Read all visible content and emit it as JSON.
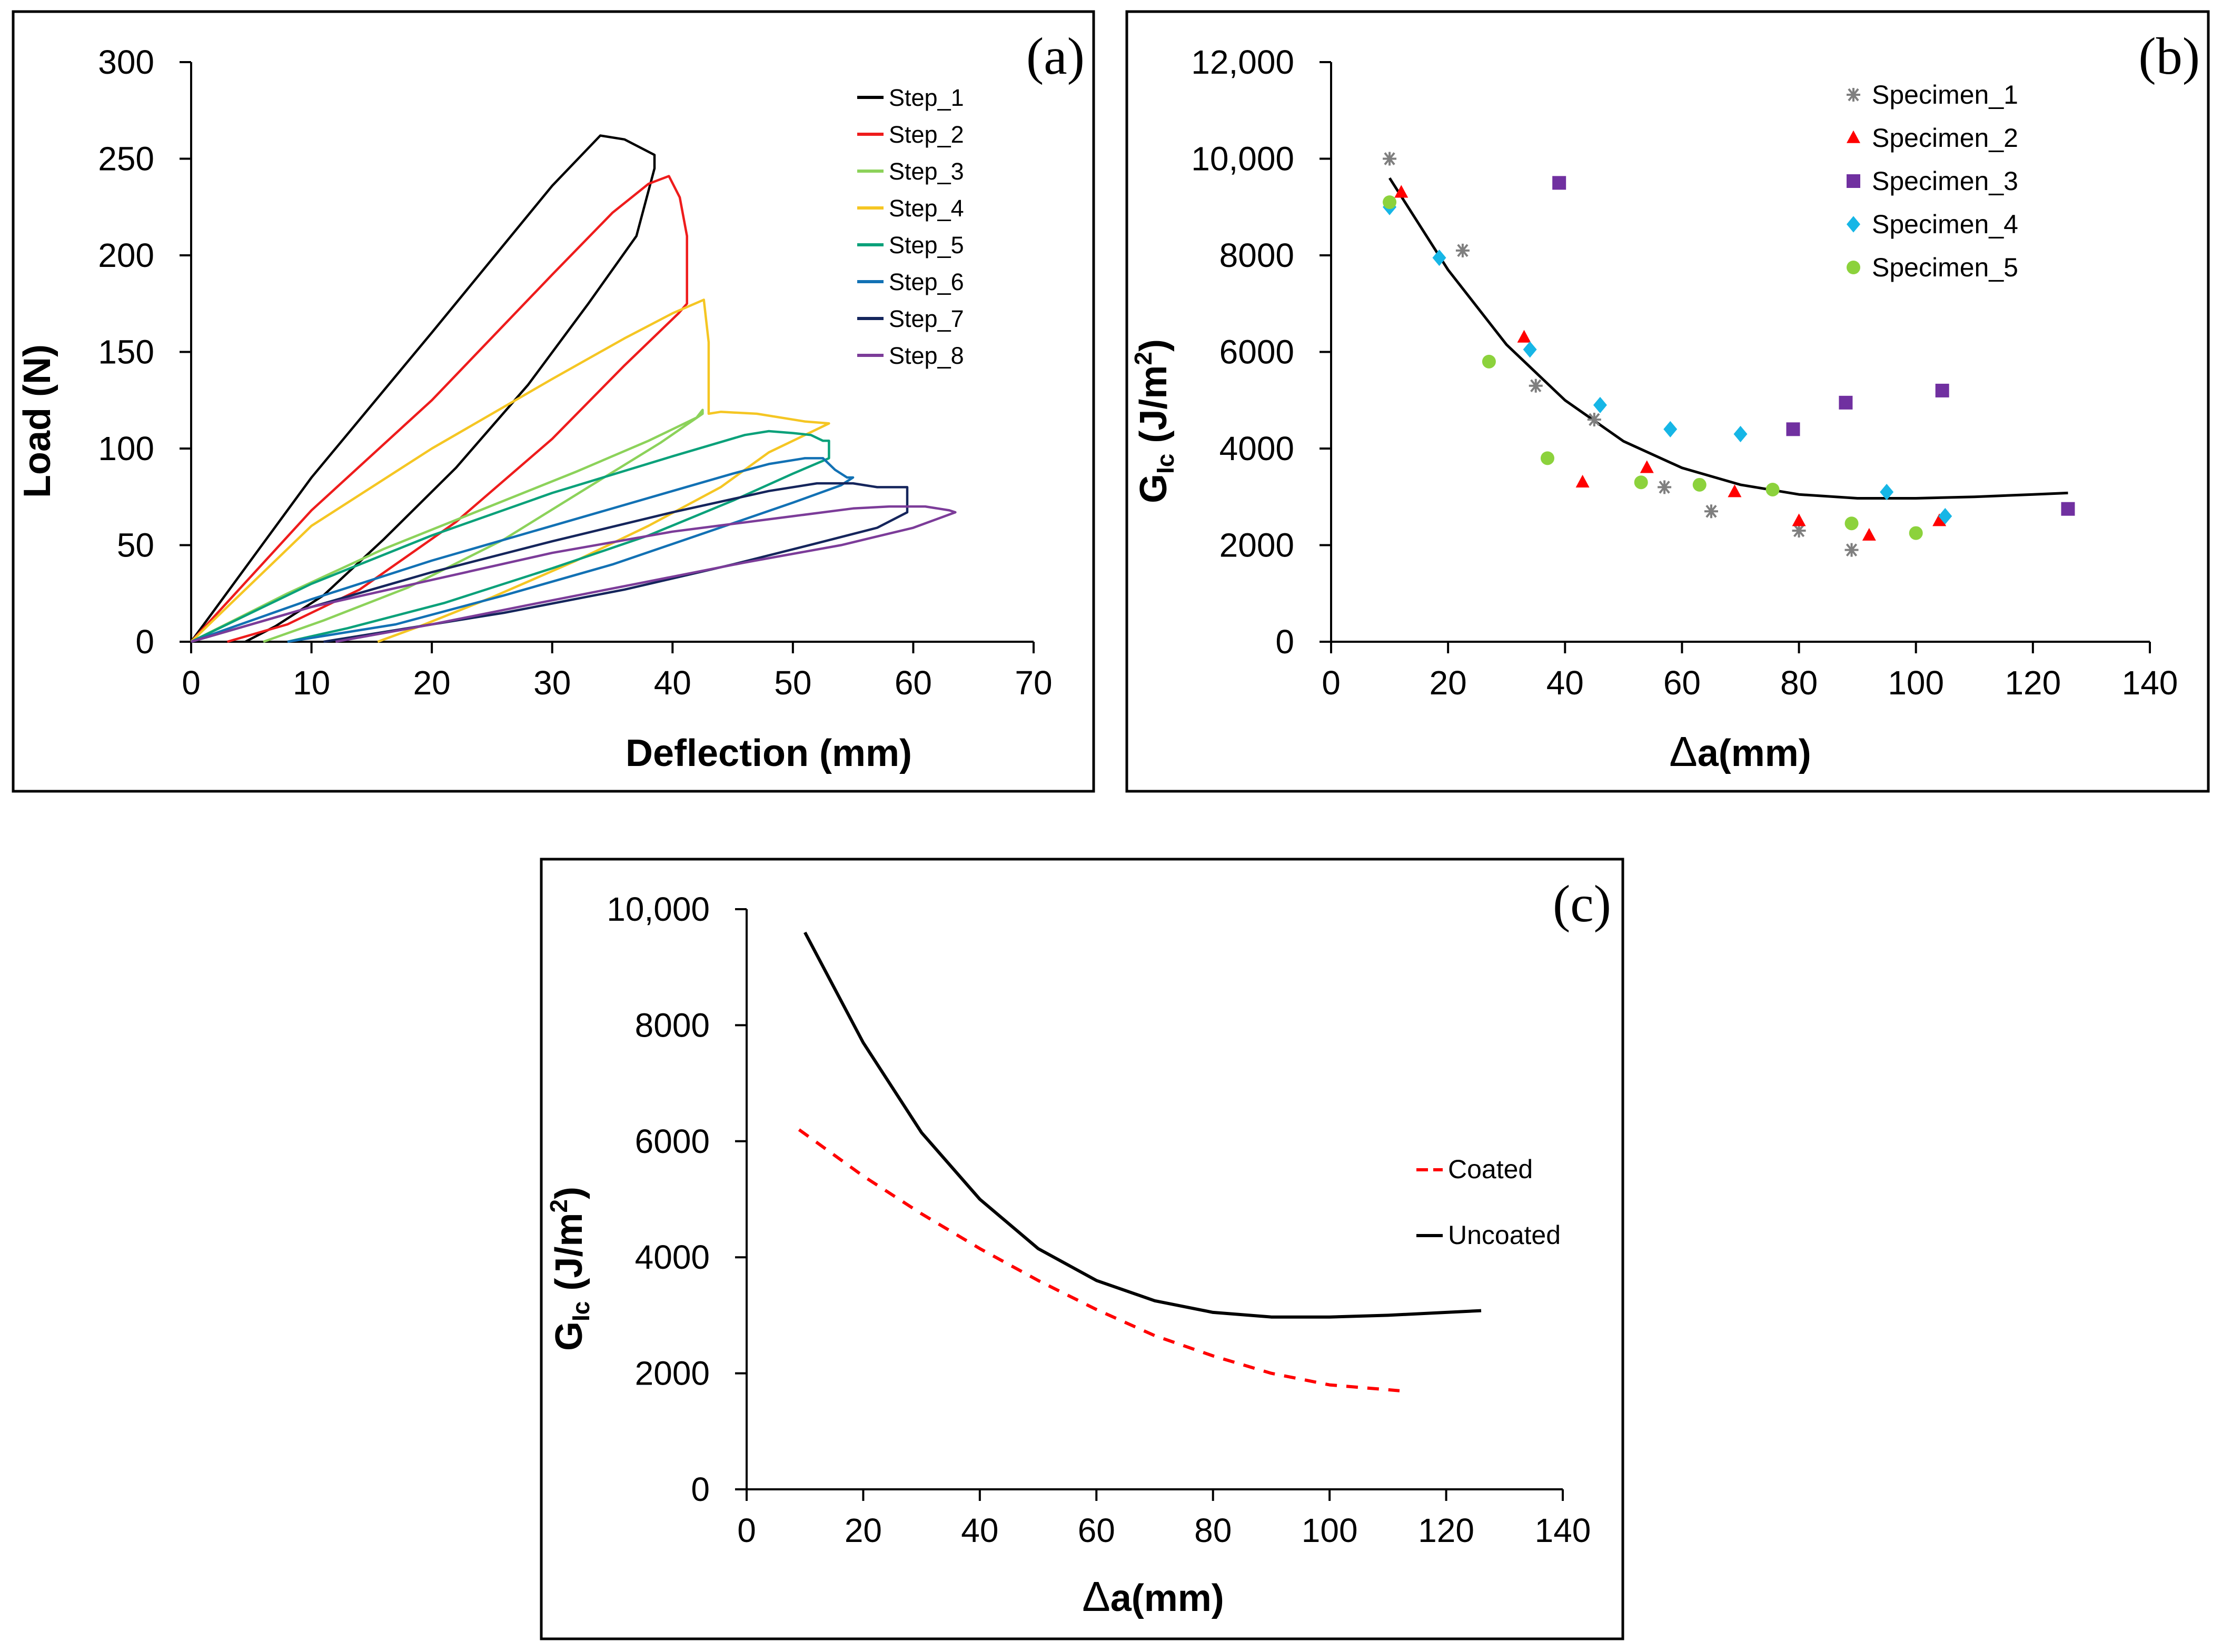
{
  "chart_data": [
    {
      "panel": "(a)",
      "type": "line",
      "title": "",
      "xlabel": "Deflection (mm)",
      "ylabel": "Load (N)",
      "xlim": [
        0,
        70
      ],
      "ylim": [
        0,
        300
      ],
      "xticks": [
        0,
        10,
        20,
        30,
        40,
        50,
        60,
        70
      ],
      "yticks": [
        0,
        50,
        100,
        150,
        200,
        250,
        300
      ],
      "xtick_labels": [
        "0",
        "10",
        "20",
        "30",
        "40",
        "50",
        "60",
        "70"
      ],
      "ytick_labels": [
        "0",
        "50",
        "100",
        "150",
        "200",
        "250",
        "300"
      ],
      "legend_position": "top-right",
      "series": [
        {
          "name": "Step_1",
          "color": "#000000",
          "points": [
            [
              0,
              0
            ],
            [
              10,
              85
            ],
            [
              20,
              160
            ],
            [
              30,
              236
            ],
            [
              34,
              262
            ],
            [
              36,
              260
            ],
            [
              38.5,
              252
            ],
            [
              38.5,
              245
            ],
            [
              37,
              210
            ],
            [
              33,
              175
            ],
            [
              28,
              133
            ],
            [
              22,
              90
            ],
            [
              16,
              53
            ],
            [
              11,
              24
            ],
            [
              7,
              8
            ],
            [
              4.5,
              0
            ]
          ]
        },
        {
          "name": "Step_2",
          "color": "#ee1c1c",
          "points": [
            [
              0,
              0
            ],
            [
              10,
              68
            ],
            [
              20,
              125
            ],
            [
              30,
              190
            ],
            [
              35,
              222
            ],
            [
              38,
              237
            ],
            [
              39.7,
              241
            ],
            [
              40.6,
              230
            ],
            [
              41.2,
              210
            ],
            [
              41.2,
              175
            ],
            [
              40.5,
              170
            ],
            [
              36,
              143
            ],
            [
              30,
              105
            ],
            [
              22,
              62
            ],
            [
              14,
              27
            ],
            [
              8,
              9
            ],
            [
              3,
              0
            ]
          ]
        },
        {
          "name": "Step_3",
          "color": "#8cd25a",
          "points": [
            [
              0,
              0
            ],
            [
              8,
              25
            ],
            [
              16,
              48
            ],
            [
              24,
              68
            ],
            [
              32,
              88
            ],
            [
              38,
              104
            ],
            [
              42,
              116
            ],
            [
              42.5,
              120
            ],
            [
              42.5,
              118
            ],
            [
              39,
              103
            ],
            [
              33,
              80
            ],
            [
              26,
              53
            ],
            [
              18,
              28
            ],
            [
              11,
              11
            ],
            [
              6,
              0
            ]
          ]
        },
        {
          "name": "Step_4",
          "color": "#f5c623",
          "points": [
            [
              0,
              0
            ],
            [
              10,
              60
            ],
            [
              20,
              100
            ],
            [
              30,
              136
            ],
            [
              36,
              157
            ],
            [
              40,
              170
            ],
            [
              42.6,
              177
            ],
            [
              43,
              155
            ],
            [
              43,
              118
            ],
            [
              44,
              119
            ],
            [
              47,
              118
            ],
            [
              51,
              114
            ],
            [
              53,
              113
            ],
            [
              52,
              110
            ],
            [
              48,
              98
            ],
            [
              44,
              80
            ],
            [
              38,
              60
            ],
            [
              32,
              42
            ],
            [
              25,
              23
            ],
            [
              19,
              8
            ],
            [
              15.5,
              0
            ]
          ]
        },
        {
          "name": "Step_5",
          "color": "#0aa17a",
          "points": [
            [
              0,
              0
            ],
            [
              10,
              30
            ],
            [
              20,
              55
            ],
            [
              30,
              77
            ],
            [
              40,
              96
            ],
            [
              46,
              107
            ],
            [
              48,
              109
            ],
            [
              50,
              108
            ],
            [
              51.5,
              107
            ],
            [
              52.5,
              104
            ],
            [
              53,
              104
            ],
            [
              53,
              95
            ],
            [
              50,
              87
            ],
            [
              45,
              73
            ],
            [
              38,
              55
            ],
            [
              30,
              38
            ],
            [
              21,
              20
            ],
            [
              13,
              7
            ],
            [
              8,
              0
            ]
          ]
        },
        {
          "name": "Step_6",
          "color": "#1271b4",
          "points": [
            [
              0,
              0
            ],
            [
              10,
              22
            ],
            [
              20,
              42
            ],
            [
              30,
              60
            ],
            [
              40,
              78
            ],
            [
              45,
              87
            ],
            [
              48,
              92
            ],
            [
              51,
              95
            ],
            [
              52.5,
              95
            ],
            [
              53.5,
              89
            ],
            [
              54.5,
              85
            ],
            [
              55,
              85
            ],
            [
              54,
              81
            ],
            [
              50,
              72
            ],
            [
              43,
              57
            ],
            [
              35,
              40
            ],
            [
              26,
              24
            ],
            [
              17,
              9
            ],
            [
              8,
              0
            ]
          ]
        },
        {
          "name": "Step_7",
          "color": "#15255c",
          "points": [
            [
              0,
              0
            ],
            [
              10,
              18
            ],
            [
              20,
              36
            ],
            [
              30,
              52
            ],
            [
              40,
              67
            ],
            [
              48,
              78
            ],
            [
              52,
              82
            ],
            [
              55,
              82
            ],
            [
              57,
              80
            ],
            [
              59.5,
              80
            ],
            [
              59.5,
              67
            ],
            [
              57,
              59
            ],
            [
              52,
              51
            ],
            [
              45,
              40
            ],
            [
              36,
              27
            ],
            [
              26,
              15
            ],
            [
              17,
              6
            ],
            [
              11,
              0
            ]
          ]
        },
        {
          "name": "Step_8",
          "color": "#7c3c99",
          "points": [
            [
              0,
              0
            ],
            [
              10,
              18
            ],
            [
              20,
              32
            ],
            [
              30,
              46
            ],
            [
              40,
              57
            ],
            [
              50,
              65
            ],
            [
              55,
              69
            ],
            [
              58,
              70
            ],
            [
              61,
              70
            ],
            [
              63,
              68
            ],
            [
              63.5,
              67
            ],
            [
              60,
              59
            ],
            [
              54,
              50
            ],
            [
              46,
              41
            ],
            [
              37,
              30
            ],
            [
              28,
              19
            ],
            [
              20,
              9
            ],
            [
              12,
              0
            ]
          ]
        }
      ]
    },
    {
      "panel": "(b)",
      "type": "scatter",
      "title": "",
      "xlabel": "Δa(mm)",
      "ylabel": "GIc (J/m2)",
      "xlim": [
        0,
        140
      ],
      "ylim": [
        0,
        12000
      ],
      "xticks": [
        0,
        20,
        40,
        60,
        80,
        100,
        120,
        140
      ],
      "yticks": [
        0,
        2000,
        4000,
        6000,
        8000,
        10000,
        12000
      ],
      "xtick_labels": [
        "0",
        "20",
        "40",
        "60",
        "80",
        "100",
        "120",
        "140"
      ],
      "ytick_labels": [
        "0",
        "2000",
        "4000",
        "6000",
        "8000",
        "10,000",
        "12,000"
      ],
      "legend_position": "top-right",
      "series": [
        {
          "name": "Specimen_1",
          "marker": "asterisk",
          "color": "#7f7f7f",
          "points": [
            [
              10,
              10000
            ],
            [
              22.5,
              8100
            ],
            [
              35,
              5300
            ],
            [
              45,
              4600
            ],
            [
              57,
              3200
            ],
            [
              65,
              2700
            ],
            [
              80,
              2300
            ],
            [
              89,
              1900
            ]
          ]
        },
        {
          "name": "Specimen_2",
          "marker": "triangle",
          "color": "#ff0000",
          "points": [
            [
              12,
              9300
            ],
            [
              33,
              6300
            ],
            [
              43,
              3300
            ],
            [
              54,
              3600
            ],
            [
              69,
              3100
            ],
            [
              80,
              2500
            ],
            [
              92,
              2200
            ],
            [
              104,
              2500
            ]
          ]
        },
        {
          "name": "Specimen_3",
          "marker": "square",
          "color": "#7030a0",
          "points": [
            [
              39,
              9500
            ],
            [
              79,
              4400
            ],
            [
              88,
              4950
            ],
            [
              104.5,
              5200
            ],
            [
              126,
              2750
            ]
          ]
        },
        {
          "name": "Specimen_4",
          "marker": "diamond",
          "color": "#16b6e6",
          "points": [
            [
              10,
              9000
            ],
            [
              18.5,
              7950
            ],
            [
              34,
              6050
            ],
            [
              46,
              4900
            ],
            [
              58,
              4400
            ],
            [
              70,
              4300
            ],
            [
              95,
              3100
            ],
            [
              105,
              2600
            ]
          ]
        },
        {
          "name": "Specimen_5",
          "marker": "circle",
          "color": "#8cd23c",
          "points": [
            [
              10,
              9100
            ],
            [
              27,
              5800
            ],
            [
              37,
              3800
            ],
            [
              53,
              3300
            ],
            [
              63,
              3250
            ],
            [
              75.5,
              3150
            ],
            [
              89,
              2450
            ],
            [
              100,
              2250
            ]
          ]
        }
      ],
      "trend": {
        "name": "fit",
        "color": "#000000",
        "points": [
          [
            10,
            9600
          ],
          [
            20,
            7700
          ],
          [
            30,
            6150
          ],
          [
            40,
            5000
          ],
          [
            50,
            4150
          ],
          [
            60,
            3600
          ],
          [
            70,
            3250
          ],
          [
            80,
            3050
          ],
          [
            90,
            2970
          ],
          [
            100,
            2970
          ],
          [
            110,
            3000
          ],
          [
            120,
            3050
          ],
          [
            126,
            3080
          ]
        ]
      }
    },
    {
      "panel": "(c)",
      "type": "line",
      "title": "",
      "xlabel": "Δa(mm)",
      "ylabel": "GIc (J/m2)",
      "xlim": [
        0,
        140
      ],
      "ylim": [
        0,
        10000
      ],
      "xticks": [
        0,
        20,
        40,
        60,
        80,
        100,
        120,
        140
      ],
      "yticks": [
        0,
        2000,
        4000,
        6000,
        8000,
        10000
      ],
      "xtick_labels": [
        "0",
        "20",
        "40",
        "60",
        "80",
        "100",
        "120",
        "140"
      ],
      "ytick_labels": [
        "0",
        "2000",
        "4000",
        "6000",
        "8000",
        "10,000"
      ],
      "legend_position": "right",
      "series": [
        {
          "name": "Coated",
          "style": "dashed",
          "color": "#ff0000",
          "points": [
            [
              9,
              6200
            ],
            [
              20,
              5400
            ],
            [
              30,
              4750
            ],
            [
              40,
              4150
            ],
            [
              50,
              3600
            ],
            [
              60,
              3100
            ],
            [
              70,
              2650
            ],
            [
              80,
              2300
            ],
            [
              90,
              2000
            ],
            [
              100,
              1800
            ],
            [
              112,
              1700
            ]
          ]
        },
        {
          "name": "Uncoated",
          "style": "solid",
          "color": "#000000",
          "points": [
            [
              10,
              9600
            ],
            [
              20,
              7700
            ],
            [
              30,
              6150
            ],
            [
              40,
              5000
            ],
            [
              50,
              4150
            ],
            [
              60,
              3600
            ],
            [
              70,
              3250
            ],
            [
              80,
              3050
            ],
            [
              90,
              2970
            ],
            [
              100,
              2970
            ],
            [
              110,
              3000
            ],
            [
              120,
              3050
            ],
            [
              126,
              3080
            ]
          ]
        }
      ]
    }
  ]
}
